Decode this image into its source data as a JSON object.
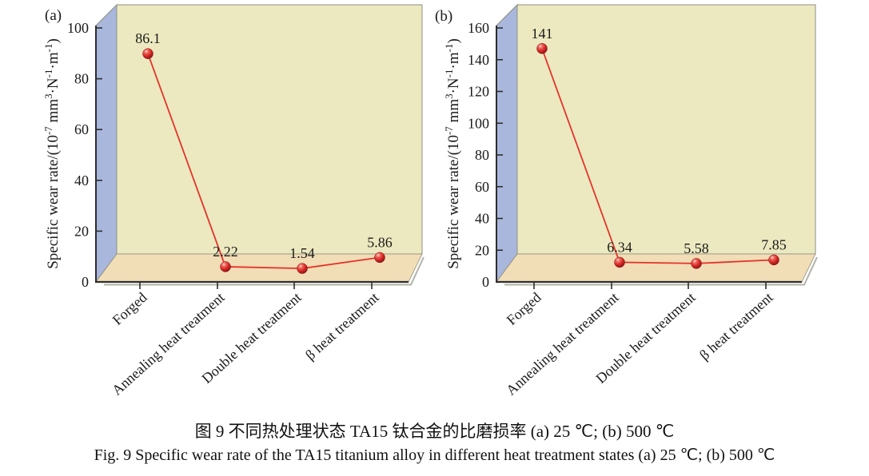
{
  "figure": {
    "caption_zh": "图 9  不同热处理状态 TA15 钛合金的比磨损率  (a) 25 ℃; (b) 500 ℃",
    "caption_en": "Fig. 9  Specific wear rate of the TA15 titanium alloy in different heat treatment states  (a) 25 ℃; (b) 500 ℃"
  },
  "colors": {
    "back_wall": "#ece9c0",
    "side_wall": "#a9b7dd",
    "floor": "#f1ddb6",
    "wall_edge": "#8f8f80",
    "axis": "#2e2e2e",
    "line": "#e5332c",
    "marker_highlight": "#ffe0da",
    "marker_mid": "#ef6a5f",
    "marker_core": "#da2a27",
    "marker_dark": "#7e1014",
    "shadow": "#a6a69a",
    "text": "#1a1a1a"
  },
  "chart_data": [
    {
      "type": "line",
      "panel": "(a)",
      "temperature": "25 ℃",
      "ylabel": "Specific wear rate/(10⁻⁷ mm³·N⁻¹·m⁻¹)",
      "ylabel_parts": [
        [
          "Specific wear rate/(10",
          0
        ],
        [
          "-7",
          1
        ],
        [
          " mm",
          0
        ],
        [
          "3",
          1
        ],
        [
          "·N",
          0
        ],
        [
          "-1",
          1
        ],
        [
          "·m",
          0
        ],
        [
          "-1",
          1
        ],
        [
          ")",
          0
        ]
      ],
      "categories": [
        "Forged",
        "Annealing heat treatment",
        "Double heat treatment",
        "β heat treatment"
      ],
      "values": [
        86.1,
        2.22,
        1.54,
        5.86
      ],
      "value_labels": [
        "86.1",
        "2.22",
        "1.54",
        "5.86"
      ],
      "ylim": [
        0,
        100
      ],
      "ytick_step": 20,
      "grid": false,
      "legend": null
    },
    {
      "type": "line",
      "panel": "(b)",
      "temperature": "500 ℃",
      "ylabel": "Specific wear rate/(10⁻⁷ mm³·N⁻¹·m⁻¹)",
      "ylabel_parts": [
        [
          "Specific wear rate/(10",
          0
        ],
        [
          "-7",
          1
        ],
        [
          " mm",
          0
        ],
        [
          "3",
          1
        ],
        [
          "·N",
          0
        ],
        [
          "-1",
          1
        ],
        [
          "·m",
          0
        ],
        [
          "-1",
          1
        ],
        [
          ")",
          0
        ]
      ],
      "categories": [
        "Forged",
        "Annealing heat treatment",
        "Double heat treatment",
        "β heat treatment"
      ],
      "values": [
        141,
        6.34,
        5.58,
        7.85
      ],
      "value_labels": [
        "141",
        "6.34",
        "5.58",
        "7.85"
      ],
      "ylim": [
        0,
        160
      ],
      "ytick_step": 20,
      "grid": false,
      "legend": null
    }
  ]
}
